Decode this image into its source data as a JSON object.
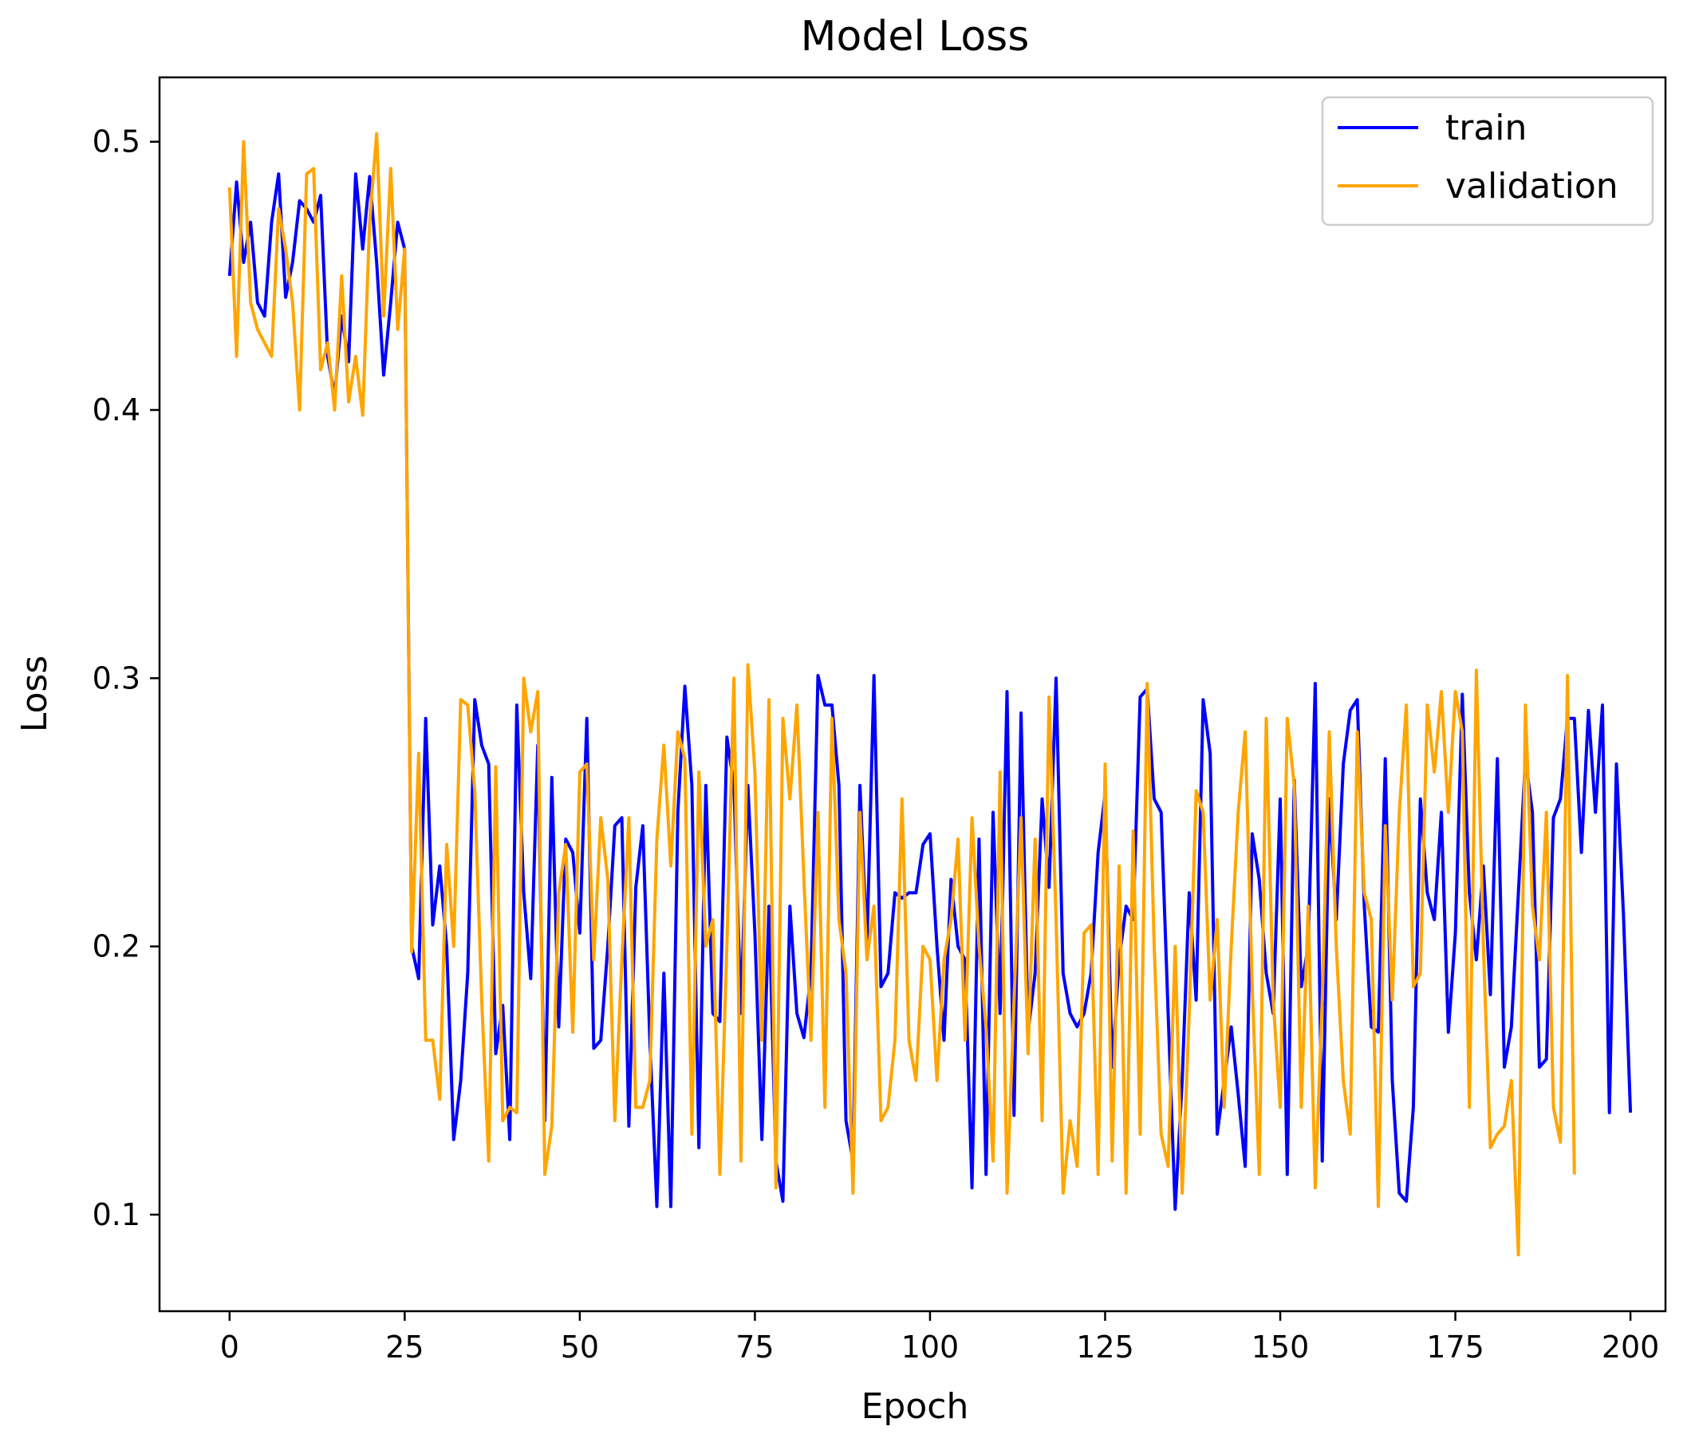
{
  "chart_data": {
    "type": "line",
    "title": "Model Loss",
    "xlabel": "Epoch",
    "ylabel": "Loss",
    "xlim": [
      -10,
      205
    ],
    "ylim": [
      0.064,
      0.524
    ],
    "xticks": [
      0,
      25,
      50,
      75,
      100,
      125,
      150,
      175,
      200
    ],
    "yticks": [
      0.1,
      0.2,
      0.3,
      0.4,
      0.5
    ],
    "xtick_labels": [
      "0",
      "25",
      "50",
      "75",
      "100",
      "125",
      "150",
      "175",
      "200"
    ],
    "ytick_labels": [
      "0.1",
      "0.2",
      "0.3",
      "0.4",
      "0.5"
    ],
    "grid": false,
    "legend_position": "top-right",
    "series": [
      {
        "name": "train",
        "color": "#0000ff",
        "values": [
          0.45,
          0.485,
          0.455,
          0.47,
          0.44,
          0.435,
          0.47,
          0.488,
          0.442,
          0.455,
          0.478,
          0.475,
          0.47,
          0.48,
          0.42,
          0.405,
          0.435,
          0.418,
          0.488,
          0.46,
          0.487,
          0.455,
          0.413,
          0.44,
          0.47,
          0.46,
          0.2,
          0.188,
          0.285,
          0.208,
          0.23,
          0.2,
          0.128,
          0.15,
          0.19,
          0.292,
          0.275,
          0.268,
          0.16,
          0.178,
          0.128,
          0.29,
          0.22,
          0.188,
          0.275,
          0.135,
          0.263,
          0.17,
          0.24,
          0.235,
          0.205,
          0.285,
          0.162,
          0.165,
          0.2,
          0.245,
          0.248,
          0.133,
          0.222,
          0.245,
          0.165,
          0.103,
          0.19,
          0.103,
          0.25,
          0.297,
          0.26,
          0.125,
          0.26,
          0.175,
          0.172,
          0.278,
          0.26,
          0.175,
          0.26,
          0.205,
          0.128,
          0.215,
          0.12,
          0.105,
          0.215,
          0.175,
          0.166,
          0.19,
          0.301,
          0.29,
          0.29,
          0.26,
          0.135,
          0.12,
          0.26,
          0.2,
          0.301,
          0.185,
          0.19,
          0.22,
          0.218,
          0.22,
          0.22,
          0.238,
          0.242,
          0.2,
          0.165,
          0.225,
          0.2,
          0.195,
          0.11,
          0.24,
          0.115,
          0.25,
          0.175,
          0.295,
          0.137,
          0.287,
          0.168,
          0.19,
          0.255,
          0.222,
          0.3,
          0.19,
          0.175,
          0.17,
          0.175,
          0.19,
          0.235,
          0.257,
          0.155,
          0.195,
          0.215,
          0.21,
          0.293,
          0.296,
          0.255,
          0.25,
          0.175,
          0.102,
          0.15,
          0.22,
          0.18,
          0.292,
          0.272,
          0.13,
          0.15,
          0.17,
          0.145,
          0.118,
          0.242,
          0.225,
          0.19,
          0.175,
          0.255,
          0.115,
          0.262,
          0.185,
          0.2,
          0.298,
          0.12,
          0.255,
          0.21,
          0.268,
          0.288,
          0.292,
          0.215,
          0.17,
          0.168,
          0.27,
          0.15,
          0.108,
          0.105,
          0.14,
          0.255,
          0.22,
          0.21,
          0.25,
          0.168,
          0.205,
          0.294,
          0.22,
          0.195,
          0.23,
          0.182,
          0.27,
          0.155,
          0.17,
          0.22,
          0.27,
          0.25,
          0.155,
          0.158,
          0.248,
          0.255,
          0.285,
          0.285,
          0.235,
          0.288,
          0.25,
          0.29,
          0.138,
          0.268,
          0.212,
          0.138
        ]
      },
      {
        "name": "validation",
        "color": "#ffa500",
        "values": [
          0.483,
          0.42,
          0.5,
          0.44,
          0.43,
          0.425,
          0.42,
          0.475,
          0.46,
          0.44,
          0.4,
          0.488,
          0.49,
          0.415,
          0.425,
          0.4,
          0.45,
          0.403,
          0.42,
          0.398,
          0.47,
          0.503,
          0.435,
          0.49,
          0.43,
          0.46,
          0.198,
          0.272,
          0.165,
          0.165,
          0.143,
          0.238,
          0.2,
          0.292,
          0.29,
          0.258,
          0.18,
          0.12,
          0.267,
          0.135,
          0.14,
          0.138,
          0.3,
          0.28,
          0.295,
          0.115,
          0.133,
          0.22,
          0.238,
          0.168,
          0.265,
          0.268,
          0.195,
          0.248,
          0.225,
          0.135,
          0.195,
          0.248,
          0.14,
          0.14,
          0.15,
          0.24,
          0.275,
          0.23,
          0.28,
          0.27,
          0.13,
          0.265,
          0.2,
          0.21,
          0.115,
          0.2,
          0.3,
          0.12,
          0.305,
          0.265,
          0.165,
          0.292,
          0.11,
          0.285,
          0.255,
          0.29,
          0.225,
          0.165,
          0.25,
          0.14,
          0.285,
          0.21,
          0.19,
          0.108,
          0.25,
          0.195,
          0.215,
          0.135,
          0.14,
          0.165,
          0.255,
          0.165,
          0.15,
          0.2,
          0.195,
          0.15,
          0.195,
          0.21,
          0.24,
          0.165,
          0.248,
          0.2,
          0.17,
          0.12,
          0.265,
          0.108,
          0.18,
          0.248,
          0.16,
          0.24,
          0.135,
          0.293,
          0.21,
          0.108,
          0.135,
          0.118,
          0.205,
          0.208,
          0.115,
          0.268,
          0.12,
          0.23,
          0.108,
          0.243,
          0.13,
          0.298,
          0.2,
          0.13,
          0.118,
          0.2,
          0.108,
          0.175,
          0.258,
          0.25,
          0.18,
          0.21,
          0.14,
          0.2,
          0.25,
          0.28,
          0.185,
          0.115,
          0.285,
          0.18,
          0.14,
          0.285,
          0.26,
          0.14,
          0.215,
          0.11,
          0.18,
          0.28,
          0.2,
          0.15,
          0.13,
          0.28,
          0.22,
          0.21,
          0.103,
          0.245,
          0.18,
          0.25,
          0.29,
          0.185,
          0.19,
          0.29,
          0.265,
          0.295,
          0.25,
          0.295,
          0.28,
          0.14,
          0.303,
          0.2,
          0.125,
          0.13,
          0.133,
          0.15,
          0.085,
          0.29,
          0.215,
          0.195,
          0.25,
          0.14,
          0.127,
          0.301,
          0.115
        ]
      }
    ]
  }
}
